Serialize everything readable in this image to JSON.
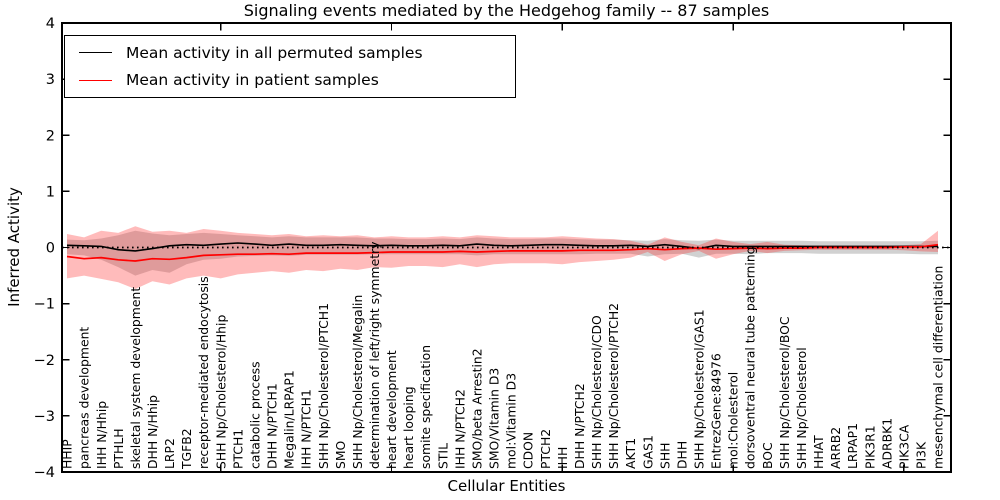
{
  "chart_data": {
    "type": "line",
    "title": "Signaling events mediated by the Hedgehog family -- 87 samples",
    "xlabel": "Cellular Entities",
    "ylabel": "Inferred Activity",
    "ylim": [
      -4,
      4
    ],
    "yticks": [
      4,
      3,
      2,
      1,
      0,
      -1,
      -2,
      -3,
      -4
    ],
    "ytick_labels": [
      "4",
      "3",
      "2",
      "1",
      "0",
      "−1",
      "−2",
      "−3",
      "−4"
    ],
    "xtick_indices": [
      9,
      19,
      29,
      39,
      49
    ],
    "grid": false,
    "legend_position": "upper left",
    "zero_reference_line": {
      "y": 0,
      "style": "dotted",
      "color": "#000000"
    },
    "colors": {
      "permuted_line": "#000000",
      "patient_line": "#ff0000",
      "permuted_band": "rgba(90,90,90,0.28)",
      "patient_band": "rgba(255,30,30,0.30)"
    },
    "categories": [
      "HHIP",
      "pancreas development",
      "IHH N/Hhip",
      "PTHLH",
      "skeletal system development",
      "DHH N/Hhip",
      "LRP2",
      "TGFB2",
      "receptor-mediated endocytosis",
      "SHH Np/Cholesterol/Hhip",
      "PTCH1",
      "catabolic process",
      "DHH N/PTCH1",
      "Megalin/LRPAP1",
      "IHH N/PTCH1",
      "SHH Np/Cholesterol/PTCH1",
      "SMO",
      "SHH Np/Cholesterol/Megalin",
      "determination of left/right symmetry",
      "heart development",
      "heart looping",
      "somite specification",
      "STIL",
      "IHH N/PTCH2",
      "SMO/beta Arrestin2",
      "SMO/Vitamin D3",
      "mol:Vitamin D3",
      "CDON",
      "PTCH2",
      "IHH",
      "DHH N/PTCH2",
      "SHH Np/Cholesterol/CDO",
      "SHH Np/Cholesterol/PTCH2",
      "AKT1",
      "GAS1",
      "SHH",
      "DHH",
      "SHH Np/Cholesterol/GAS1",
      "EntrezGene:84976",
      "mol:Cholesterol",
      "dorsoventral neural tube patterning",
      "BOC",
      "SHH Np/Cholesterol/BOC",
      "SHH Np/Cholesterol",
      "HHAT",
      "ARRB2",
      "LRPAP1",
      "PIK3R1",
      "ADRBK1",
      "PIK3CA",
      "PI3K",
      "mesenchymal cell differentiation"
    ],
    "series": [
      {
        "name": "Mean activity in all permuted samples",
        "color": "#000000",
        "values": [
          0.04,
          0.03,
          0.02,
          -0.04,
          -0.06,
          -0.02,
          0.03,
          0.05,
          0.04,
          0.06,
          0.08,
          0.06,
          0.04,
          0.06,
          0.04,
          0.04,
          0.05,
          0.04,
          0.03,
          0.04,
          0.03,
          0.03,
          0.04,
          0.03,
          0.06,
          0.04,
          0.03,
          0.04,
          0.05,
          0.05,
          0.04,
          0.03,
          0.03,
          0.04,
          0.02,
          0.05,
          0.02,
          -0.02,
          0.04,
          0.02,
          0.02,
          0.02,
          0.02,
          0.02,
          0.02,
          0.02,
          0.02,
          0.02,
          0.02,
          0.02,
          0.02,
          0.02
        ],
        "band_upper": [
          0.14,
          0.13,
          0.16,
          0.22,
          0.3,
          0.25,
          0.22,
          0.24,
          0.26,
          0.24,
          0.22,
          0.2,
          0.18,
          0.2,
          0.18,
          0.18,
          0.18,
          0.18,
          0.16,
          0.16,
          0.15,
          0.15,
          0.16,
          0.15,
          0.18,
          0.16,
          0.15,
          0.15,
          0.16,
          0.16,
          0.15,
          0.14,
          0.14,
          0.13,
          0.12,
          0.15,
          0.13,
          0.12,
          0.14,
          0.12,
          0.12,
          0.12,
          0.12,
          0.12,
          0.11,
          0.11,
          0.11,
          0.11,
          0.11,
          0.11,
          0.11,
          0.12
        ],
        "band_lower": [
          -0.12,
          -0.14,
          -0.22,
          -0.35,
          -0.5,
          -0.4,
          -0.45,
          -0.3,
          -0.22,
          -0.2,
          -0.16,
          -0.15,
          -0.14,
          -0.15,
          -0.13,
          -0.13,
          -0.13,
          -0.13,
          -0.12,
          -0.12,
          -0.12,
          -0.12,
          -0.12,
          -0.12,
          -0.14,
          -0.12,
          -0.12,
          -0.12,
          -0.12,
          -0.12,
          -0.12,
          -0.11,
          -0.11,
          -0.11,
          -0.16,
          -0.12,
          -0.11,
          -0.18,
          -0.11,
          -0.11,
          -0.12,
          -0.1,
          -0.1,
          -0.1,
          -0.11,
          -0.11,
          -0.11,
          -0.11,
          -0.11,
          -0.11,
          -0.12,
          -0.12
        ]
      },
      {
        "name": "Mean activity in patient samples",
        "color": "#ff0000",
        "values": [
          -0.16,
          -0.2,
          -0.18,
          -0.22,
          -0.24,
          -0.2,
          -0.21,
          -0.18,
          -0.14,
          -0.13,
          -0.12,
          -0.12,
          -0.11,
          -0.12,
          -0.1,
          -0.1,
          -0.1,
          -0.1,
          -0.09,
          -0.08,
          -0.08,
          -0.08,
          -0.08,
          -0.07,
          -0.08,
          -0.07,
          -0.06,
          -0.06,
          -0.06,
          -0.06,
          -0.05,
          -0.05,
          -0.05,
          -0.04,
          -0.02,
          -0.04,
          -0.02,
          -0.01,
          -0.03,
          -0.02,
          -0.01,
          -0.02,
          -0.01,
          -0.01,
          0.0,
          0.0,
          0.0,
          0.0,
          0.0,
          0.01,
          0.01,
          0.05
        ],
        "band_upper": [
          0.24,
          0.18,
          0.3,
          0.26,
          0.38,
          0.28,
          0.3,
          0.26,
          0.33,
          0.3,
          0.26,
          0.24,
          0.22,
          0.24,
          0.2,
          0.22,
          0.2,
          0.22,
          0.18,
          0.2,
          0.18,
          0.18,
          0.2,
          0.18,
          0.22,
          0.2,
          0.18,
          0.18,
          0.18,
          0.2,
          0.18,
          0.16,
          0.15,
          0.12,
          0.05,
          0.18,
          0.1,
          0.04,
          0.16,
          0.1,
          0.06,
          0.1,
          0.05,
          0.04,
          0.03,
          0.03,
          0.03,
          0.03,
          0.03,
          0.04,
          0.06,
          0.3
        ],
        "band_lower": [
          -0.55,
          -0.5,
          -0.56,
          -0.62,
          -0.74,
          -0.6,
          -0.66,
          -0.55,
          -0.5,
          -0.55,
          -0.48,
          -0.45,
          -0.42,
          -0.45,
          -0.4,
          -0.42,
          -0.38,
          -0.4,
          -0.35,
          -0.36,
          -0.33,
          -0.33,
          -0.35,
          -0.3,
          -0.35,
          -0.3,
          -0.28,
          -0.28,
          -0.28,
          -0.3,
          -0.26,
          -0.24,
          -0.22,
          -0.18,
          -0.08,
          -0.24,
          -0.12,
          -0.06,
          -0.2,
          -0.12,
          -0.06,
          -0.1,
          -0.06,
          -0.05,
          -0.04,
          -0.04,
          -0.04,
          -0.04,
          -0.04,
          -0.05,
          -0.07,
          -0.08
        ]
      }
    ]
  }
}
